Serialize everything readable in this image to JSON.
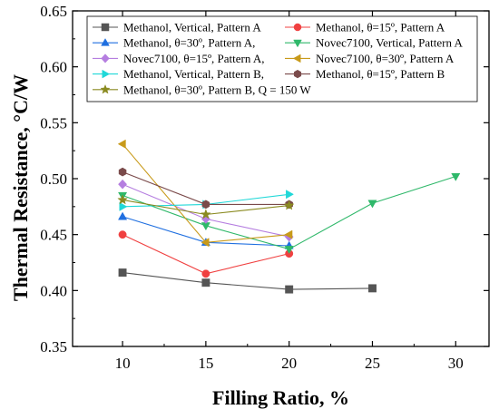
{
  "chart_data": {
    "type": "line",
    "title": "",
    "xlabel": "Filling Ratio, %",
    "ylabel": "Thermal Resistance, °C/W",
    "xlim": [
      7,
      32
    ],
    "ylim": [
      0.35,
      0.65
    ],
    "xticks": [
      "10",
      "15",
      "20",
      "25",
      "30"
    ],
    "yticks": [
      "0.35",
      "0.40",
      "0.45",
      "0.50",
      "0.55",
      "0.60",
      "0.65"
    ],
    "grid": false,
    "legend_position": "top",
    "series": [
      {
        "name": "Methanol, Vertical, Pattern A",
        "color": "#555555",
        "marker": "square",
        "x": [
          10,
          15,
          20,
          25
        ],
        "y": [
          0.416,
          0.407,
          0.401,
          0.402
        ]
      },
      {
        "name": "Methanol, θ=15º, Pattern A",
        "color": "#f04040",
        "marker": "circle",
        "x": [
          10,
          15,
          20
        ],
        "y": [
          0.45,
          0.415,
          0.433
        ]
      },
      {
        "name": "Methanol, θ=30º, Pattern A,",
        "color": "#1f6fe0",
        "marker": "triangle-up",
        "x": [
          10,
          15,
          20
        ],
        "y": [
          0.466,
          0.443,
          0.44
        ]
      },
      {
        "name": "Novec7100, Vertical, Pattern A",
        "color": "#2fb86a",
        "marker": "triangle-down",
        "x": [
          10,
          15,
          20,
          25,
          30
        ],
        "y": [
          0.485,
          0.458,
          0.437,
          0.478,
          0.502
        ]
      },
      {
        "name": "Novec7100, θ=15º, Pattern A,",
        "color": "#b57ee0",
        "marker": "diamond",
        "x": [
          10,
          15,
          20
        ],
        "y": [
          0.495,
          0.464,
          0.448
        ]
      },
      {
        "name": "Novec7100, θ=30º, Pattern A",
        "color": "#c89a1a",
        "marker": "triangle-left",
        "x": [
          10,
          15,
          20
        ],
        "y": [
          0.531,
          0.443,
          0.45
        ]
      },
      {
        "name": "Methanol, Vertical, Pattern B,",
        "color": "#20d8d8",
        "marker": "triangle-right",
        "x": [
          10,
          15,
          20
        ],
        "y": [
          0.475,
          0.477,
          0.486
        ]
      },
      {
        "name": "Methanol, θ=15º, Pattern B",
        "color": "#7a4a4a",
        "marker": "hexagon",
        "x": [
          10,
          15,
          20
        ],
        "y": [
          0.506,
          0.477,
          0.477
        ]
      },
      {
        "name": "Methanol, θ=30º, Pattern B, Q = 150 W",
        "color": "#8a8a20",
        "marker": "star",
        "x": [
          10,
          15,
          20
        ],
        "y": [
          0.481,
          0.468,
          0.476
        ]
      }
    ]
  }
}
